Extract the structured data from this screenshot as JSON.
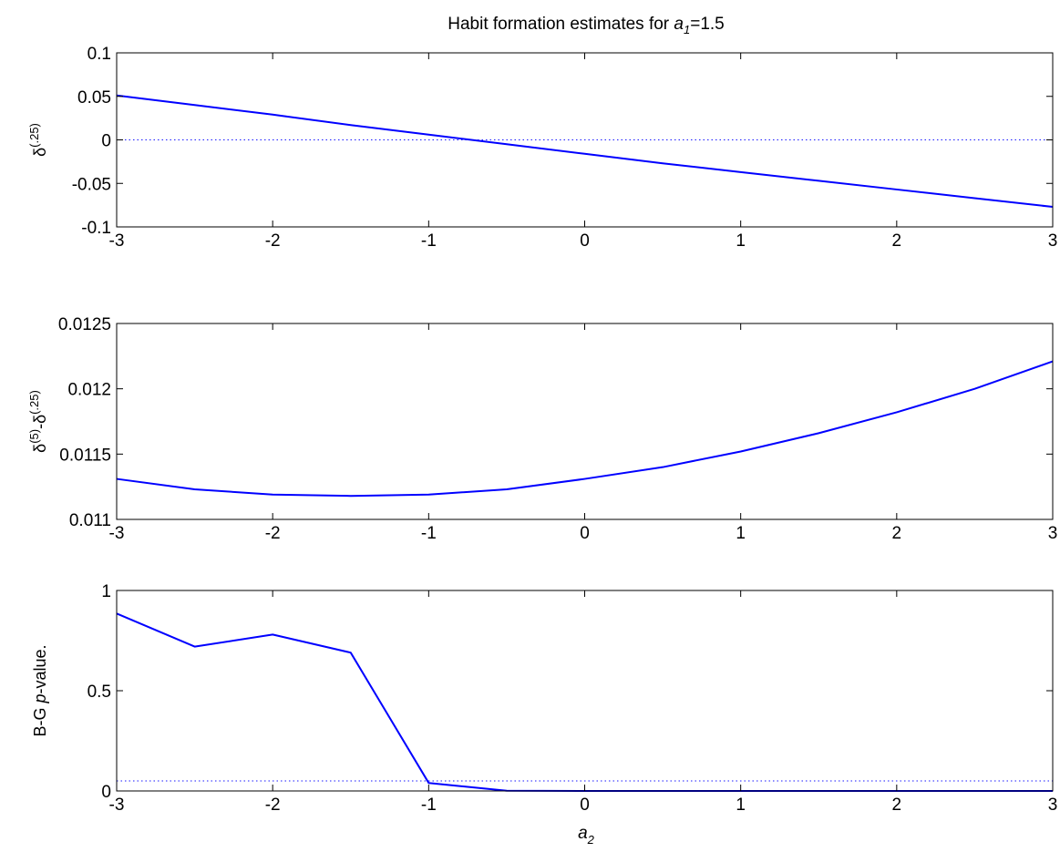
{
  "figure": {
    "title_prefix": "Habit formation estimates for ",
    "title_var": "a",
    "title_sub": "1",
    "title_suffix": "=1.5",
    "xlabel_var": "a",
    "xlabel_sub": "2"
  },
  "colors": {
    "line": "#0000ff",
    "axes": "#000000",
    "ref": "#1a1aff"
  },
  "chart_data": [
    {
      "type": "line",
      "x": [
        -3,
        -2.5,
        -2,
        -1.5,
        -1,
        -0.5,
        0,
        0.5,
        1,
        1.5,
        2,
        2.5,
        3
      ],
      "values": [
        0.051,
        0.04,
        0.029,
        0.017,
        0.006,
        -0.005,
        -0.016,
        -0.027,
        -0.037,
        -0.047,
        -0.057,
        -0.067,
        -0.077
      ],
      "reference_line": 0,
      "xlim": [
        -3,
        3
      ],
      "ylim": [
        -0.1,
        0.1
      ],
      "xticks": [
        "-3",
        "-2",
        "-1",
        "0",
        "1",
        "2",
        "3"
      ],
      "yticks": [
        "-0.1",
        "-0.05",
        "0",
        "0.05",
        "0.1"
      ],
      "ylabel": {
        "base": "δ",
        "sup": "(.25)"
      }
    },
    {
      "type": "line",
      "x": [
        -3,
        -2.5,
        -2,
        -1.5,
        -1,
        -0.5,
        0,
        0.5,
        1,
        1.5,
        2,
        2.5,
        3
      ],
      "values": [
        0.01131,
        0.01123,
        0.01119,
        0.01118,
        0.01119,
        0.01123,
        0.01131,
        0.0114,
        0.01152,
        0.01166,
        0.01182,
        0.012,
        0.01221
      ],
      "xlim": [
        -3,
        3
      ],
      "ylim": [
        0.011,
        0.0125
      ],
      "xticks": [
        "-3",
        "-2",
        "-1",
        "0",
        "1",
        "2",
        "3"
      ],
      "yticks": [
        "0.011",
        "0.0115",
        "0.012",
        "0.0125"
      ],
      "ylabel": {
        "base": "δ",
        "sup": "(5)",
        "mid": "-δ",
        "sup2": "(.25)"
      }
    },
    {
      "type": "line",
      "x": [
        -3,
        -2.5,
        -2,
        -1.5,
        -1,
        -0.5,
        0,
        0.5,
        1,
        1.5,
        2,
        2.5,
        3
      ],
      "values": [
        0.885,
        0.72,
        0.78,
        0.69,
        0.04,
        0.001,
        0,
        0,
        0,
        0,
        0,
        0,
        0
      ],
      "reference_line": 0.05,
      "xlim": [
        -3,
        3
      ],
      "ylim": [
        0,
        1
      ],
      "xticks": [
        "-3",
        "-2",
        "-1",
        "0",
        "1",
        "2",
        "3"
      ],
      "yticks": [
        "0",
        "0.5",
        "1"
      ],
      "ylabel": {
        "base": "B-G ",
        "italic": "p",
        "suffix": "-value."
      }
    }
  ]
}
